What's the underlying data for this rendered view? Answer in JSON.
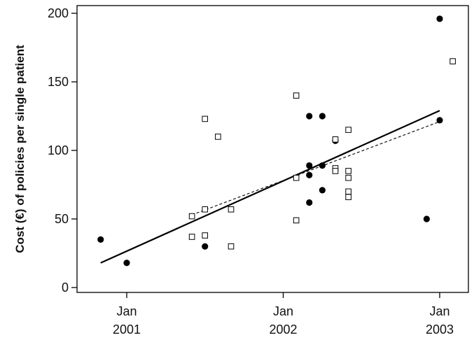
{
  "chart_data": {
    "type": "scatter",
    "title": "",
    "xlabel": "",
    "ylabel": "Cost (€) of policies per single patient",
    "ylim": [
      0,
      200
    ],
    "yticks": [
      0,
      50,
      100,
      150,
      200
    ],
    "xlim": [
      "2000-10",
      "2003-02"
    ],
    "xticks": [
      {
        "date": "2001-01",
        "label_line1": "Jan",
        "label_line2": "2001"
      },
      {
        "date": "2002-01",
        "label_line1": "Jan",
        "label_line2": "2002"
      },
      {
        "date": "2003-01",
        "label_line1": "Jan",
        "label_line2": "2003"
      }
    ],
    "grid": false,
    "series": [
      {
        "marker": "filled-circle",
        "color": "#000000",
        "points": [
          {
            "x": "2000-11",
            "y": 35
          },
          {
            "x": "2001-01",
            "y": 18
          },
          {
            "x": "2001-07",
            "y": 30
          },
          {
            "x": "2002-03",
            "y": 125
          },
          {
            "x": "2002-03",
            "y": 89
          },
          {
            "x": "2002-03",
            "y": 82
          },
          {
            "x": "2002-03",
            "y": 62
          },
          {
            "x": "2002-04",
            "y": 125
          },
          {
            "x": "2002-04",
            "y": 89
          },
          {
            "x": "2002-04",
            "y": 71
          },
          {
            "x": "2002-05",
            "y": 107
          },
          {
            "x": "2002-12",
            "y": 50
          },
          {
            "x": "2003-01",
            "y": 196
          },
          {
            "x": "2003-01",
            "y": 122
          }
        ]
      },
      {
        "marker": "open-square",
        "color": "#000000",
        "points": [
          {
            "x": "2001-06",
            "y": 52
          },
          {
            "x": "2001-06",
            "y": 37
          },
          {
            "x": "2001-07",
            "y": 123
          },
          {
            "x": "2001-07",
            "y": 57
          },
          {
            "x": "2001-07",
            "y": 38
          },
          {
            "x": "2001-08",
            "y": 110
          },
          {
            "x": "2001-09",
            "y": 57
          },
          {
            "x": "2001-09",
            "y": 30
          },
          {
            "x": "2002-02",
            "y": 49
          },
          {
            "x": "2002-02",
            "y": 140
          },
          {
            "x": "2002-02",
            "y": 80
          },
          {
            "x": "2002-05",
            "y": 108
          },
          {
            "x": "2002-05",
            "y": 87
          },
          {
            "x": "2002-05",
            "y": 85
          },
          {
            "x": "2002-06",
            "y": 115
          },
          {
            "x": "2002-06",
            "y": 85
          },
          {
            "x": "2002-06",
            "y": 80
          },
          {
            "x": "2002-06",
            "y": 70
          },
          {
            "x": "2002-06",
            "y": 66
          },
          {
            "x": "2003-02",
            "y": 165
          }
        ]
      }
    ],
    "trendlines": [
      {
        "style": "solid",
        "from": {
          "x": "2000-11",
          "y": 18
        },
        "to": {
          "x": "2003-01",
          "y": 129
        }
      },
      {
        "style": "dashed",
        "from": {
          "x": "2001-06",
          "y": 53
        },
        "to": {
          "x": "2003-01",
          "y": 121
        }
      }
    ]
  }
}
